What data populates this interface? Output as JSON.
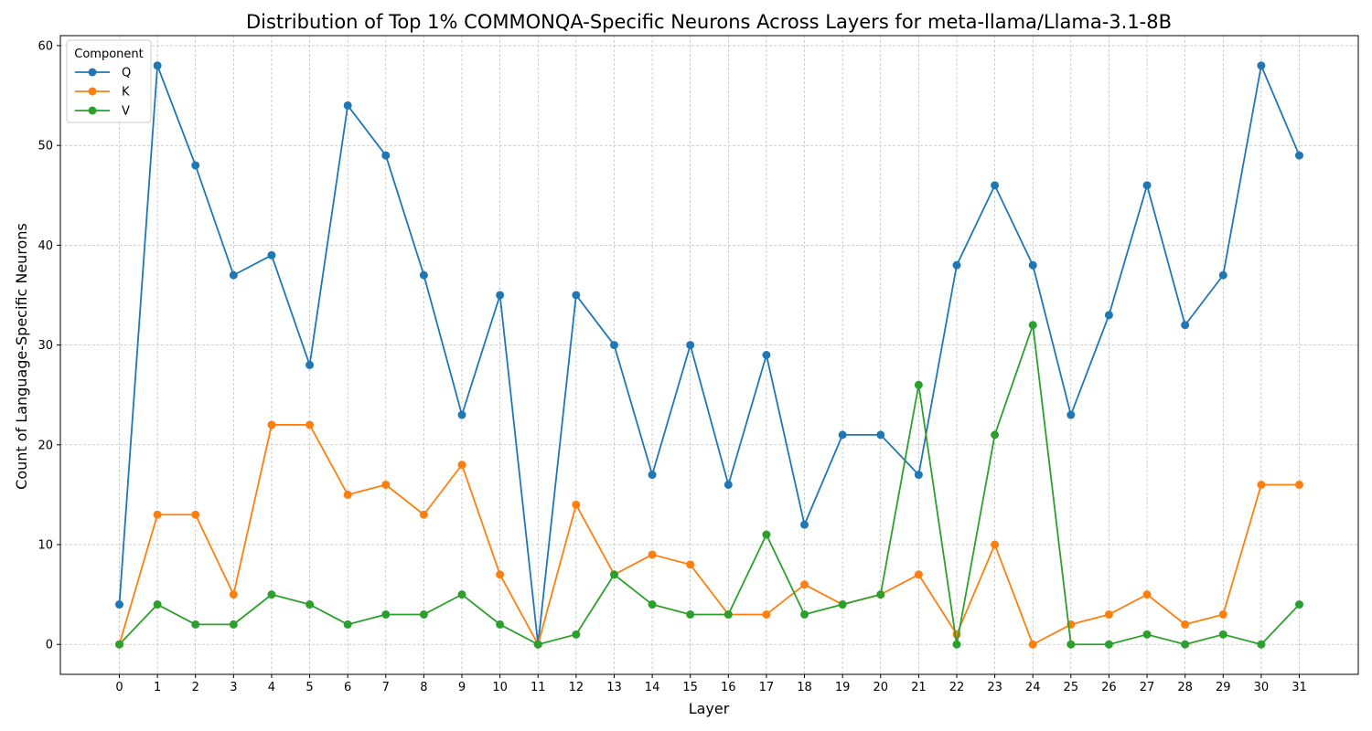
{
  "chart_data": {
    "type": "line",
    "title": "Distribution of Top 1% COMMONQA-Specific Neurons Across Layers for meta-llama/Llama-3.1-8B",
    "xlabel": "Layer",
    "ylabel": "Count of Language-Specific Neurons",
    "x": [
      0,
      1,
      2,
      3,
      4,
      5,
      6,
      7,
      8,
      9,
      10,
      11,
      12,
      13,
      14,
      15,
      16,
      17,
      18,
      19,
      20,
      21,
      22,
      23,
      24,
      25,
      26,
      27,
      28,
      29,
      30,
      31
    ],
    "xlim": [
      -1.55,
      32.55
    ],
    "ylim": [
      -3,
      61
    ],
    "yticks": [
      0,
      10,
      20,
      30,
      40,
      50,
      60
    ],
    "grid": true,
    "legend": {
      "title": "Component",
      "placement": "top-left"
    },
    "series": [
      {
        "name": "Q",
        "color": "#1f77b4",
        "values": [
          4,
          58,
          48,
          37,
          39,
          28,
          54,
          49,
          37,
          23,
          35,
          0,
          35,
          30,
          17,
          30,
          16,
          29,
          12,
          21,
          21,
          17,
          38,
          46,
          38,
          23,
          33,
          46,
          32,
          37,
          58,
          49
        ]
      },
      {
        "name": "K",
        "color": "#ff7f0e",
        "values": [
          0,
          13,
          13,
          5,
          22,
          22,
          15,
          16,
          13,
          18,
          7,
          0,
          14,
          7,
          9,
          8,
          3,
          3,
          6,
          4,
          5,
          7,
          1,
          10,
          0,
          2,
          3,
          5,
          2,
          3,
          16,
          16
        ]
      },
      {
        "name": "V",
        "color": "#2ca02c",
        "values": [
          0,
          4,
          2,
          2,
          5,
          4,
          2,
          3,
          3,
          5,
          2,
          0,
          1,
          7,
          4,
          3,
          3,
          11,
          3,
          4,
          5,
          26,
          0,
          21,
          32,
          0,
          0,
          1,
          0,
          1,
          0,
          4
        ]
      }
    ]
  }
}
